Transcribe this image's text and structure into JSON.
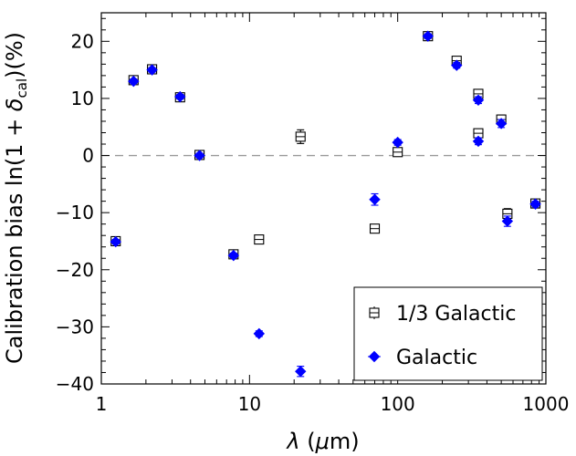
{
  "chart_data": {
    "type": "scatter",
    "xscale": "log",
    "xlim": [
      1,
      1000
    ],
    "ylim": [
      -40,
      25
    ],
    "xticks": [
      1,
      10,
      100,
      1000
    ],
    "xtick_labels": [
      "1",
      "10",
      "100",
      "1000"
    ],
    "yticks": [
      -40,
      -30,
      -20,
      -10,
      0,
      10,
      20
    ],
    "ytick_labels": [
      "−40",
      "−30",
      "−20",
      "−10",
      "0",
      "10",
      "20"
    ],
    "xlabel_parts": {
      "symbol": "λ",
      "unit_open": "(",
      "unit_mu": "μ",
      "unit_rest": "m)"
    },
    "ylabel_parts": {
      "main": "Calibration bias ln(1 + ",
      "delta": "δ",
      "sub": "cal",
      "tail": ")(%)"
    },
    "reference_line": {
      "y": 0,
      "style": "dashed",
      "color": "#999999"
    },
    "legend_position": "lower-right",
    "series": [
      {
        "name": "1/3 Galactic",
        "marker": "square-open",
        "color": "#000000",
        "x": [
          1.25,
          1.65,
          2.2,
          3.4,
          4.6,
          7.8,
          11.6,
          22.1,
          70,
          100,
          160,
          250,
          350,
          350,
          500,
          550,
          850
        ],
        "y": [
          -15.0,
          13.2,
          15.1,
          10.2,
          0.1,
          -17.3,
          -14.7,
          3.3,
          -12.8,
          0.6,
          20.9,
          16.6,
          10.8,
          3.9,
          6.3,
          -10.2,
          -8.4
        ],
        "yerr": [
          0.4,
          0.4,
          0.4,
          0.4,
          0.4,
          0.4,
          0.5,
          1.2,
          0.5,
          0.6,
          0.4,
          0.6,
          0.7,
          0.7,
          0.8,
          0.9,
          0.5
        ]
      },
      {
        "name": "Galactic",
        "marker": "diamond-filled",
        "color": "#0000ff",
        "x": [
          1.25,
          1.65,
          2.2,
          3.4,
          4.6,
          7.8,
          11.6,
          22.1,
          70,
          100,
          160,
          250,
          350,
          350,
          500,
          550,
          850
        ],
        "y": [
          -15.1,
          13.0,
          15.0,
          10.3,
          0.0,
          -17.5,
          -31.2,
          -37.8,
          -7.7,
          2.3,
          20.9,
          15.8,
          9.7,
          2.5,
          5.6,
          -11.5,
          -8.5
        ],
        "yerr": [
          0.4,
          0.4,
          0.4,
          0.4,
          0.4,
          0.4,
          0.5,
          0.9,
          1.0,
          0.5,
          0.4,
          0.5,
          0.6,
          0.6,
          0.7,
          0.9,
          0.5
        ]
      }
    ]
  }
}
